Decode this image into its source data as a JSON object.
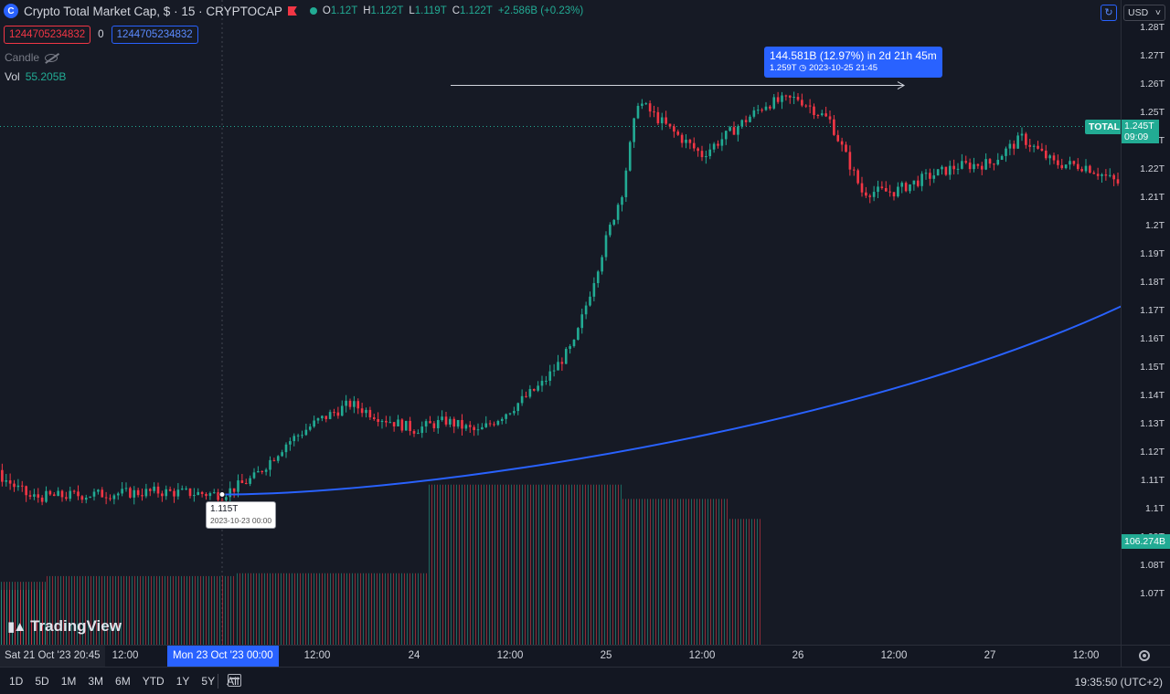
{
  "header": {
    "symbol_icon": "crypto-cap-icon",
    "title": "Crypto Total Market Cap, $ · 15 · CRYPTOCAP",
    "ohlc": {
      "o_label": "O",
      "o": "1.12T",
      "h_label": "H",
      "h": "1.122T",
      "l_label": "L",
      "l": "1.119T",
      "c_label": "C",
      "c": "1.122T",
      "change": "+2.586B (+0.23%)"
    },
    "input_a": "1244705234832",
    "input_sep": "0",
    "input_b": "1244705234832",
    "candle_label": "Candle",
    "vol_label": "Vol",
    "vol_value": "55.205B"
  },
  "measure": {
    "main": "144.581B (12.97%) in 2d 21h 45m",
    "sub": "1.259T ◷ 2023-10-25  21:45"
  },
  "start_point": {
    "price": "1.115T",
    "date": "2023-10-23 00:00"
  },
  "price_scale": {
    "currency": "USD",
    "ticks": [
      "1.28T",
      "1.27T",
      "1.26T",
      "1.25T",
      "1.23T",
      "1.22T",
      "1.21T",
      "1.2T",
      "1.19T",
      "1.18T",
      "1.17T",
      "1.16T",
      "1.15T",
      "1.14T",
      "1.13T",
      "1.12T",
      "1.11T",
      "1.1T",
      "1.09T",
      "1.08T",
      "1.07T"
    ],
    "total_label": "TOTAL",
    "last_price": "1.245T",
    "countdown": "09:09",
    "volume_tag": "106.274B"
  },
  "time_axis": {
    "start_label": "Sat 21 Oct '23   20:45",
    "highlight_label": "Mon 23 Oct '23   00:00",
    "labels": [
      "12:00",
      "12:00",
      "24",
      "12:00",
      "25",
      "12:00",
      "26",
      "12:00",
      "27",
      "12:00"
    ]
  },
  "toolbar": {
    "timeframes": [
      "1D",
      "5D",
      "1M",
      "3M",
      "6M",
      "YTD",
      "1Y",
      "5Y",
      "All"
    ],
    "clock": "19:35:50 (UTC+2)"
  },
  "brand": "TradingView",
  "colors": {
    "up": "#22ab94",
    "down": "#f23645",
    "accent": "#2962ff",
    "background": "#161a25"
  },
  "chart_data": {
    "type": "candlestick",
    "interval": "15",
    "title": "Crypto Total Market Cap, $ · 15 · CRYPTOCAP",
    "ylim": [
      1.065,
      1.285
    ],
    "y_unit": "T",
    "close_path": [
      [
        "2023-10-21 20:45",
        1.119
      ],
      [
        "2023-10-22 02:00",
        1.117
      ],
      [
        "2023-10-22 06:00",
        1.116
      ],
      [
        "2023-10-22 10:00",
        1.122
      ],
      [
        "2023-10-22 12:00",
        1.114
      ],
      [
        "2023-10-22 16:00",
        1.115
      ],
      [
        "2023-10-22 20:00",
        1.116
      ],
      [
        "2023-10-23 00:00",
        1.115
      ],
      [
        "2023-10-23 02:00",
        1.121
      ],
      [
        "2023-10-23 04:00",
        1.133
      ],
      [
        "2023-10-23 06:00",
        1.141
      ],
      [
        "2023-10-23 08:00",
        1.147
      ],
      [
        "2023-10-23 10:00",
        1.142
      ],
      [
        "2023-10-23 12:00",
        1.138
      ],
      [
        "2023-10-23 14:00",
        1.141
      ],
      [
        "2023-10-23 16:00",
        1.137
      ],
      [
        "2023-10-23 18:00",
        1.145
      ],
      [
        "2023-10-23 20:00",
        1.154
      ],
      [
        "2023-10-23 22:00",
        1.168
      ],
      [
        "2023-10-24 00:00",
        1.205
      ],
      [
        "2023-10-24 01:00",
        1.222
      ],
      [
        "2023-10-24 02:00",
        1.254
      ],
      [
        "2023-10-24 04:00",
        1.244
      ],
      [
        "2023-10-24 06:00",
        1.235
      ],
      [
        "2023-10-24 08:00",
        1.244
      ],
      [
        "2023-10-24 10:00",
        1.253
      ],
      [
        "2023-10-24 12:00",
        1.255
      ],
      [
        "2023-10-24 14:00",
        1.247
      ],
      [
        "2023-10-24 16:00",
        1.222
      ],
      [
        "2023-10-24 18:00",
        1.222
      ],
      [
        "2023-10-24 20:00",
        1.227
      ],
      [
        "2023-10-24 22:00",
        1.231
      ],
      [
        "2023-10-25 00:00",
        1.232
      ],
      [
        "2023-10-25 02:00",
        1.241
      ],
      [
        "2023-10-25 04:00",
        1.232
      ],
      [
        "2023-10-25 06:00",
        1.231
      ],
      [
        "2023-10-25 08:00",
        1.225
      ],
      [
        "2023-10-25 10:00",
        1.228
      ],
      [
        "2023-10-25 12:00",
        1.233
      ],
      [
        "2023-10-25 14:00",
        1.237
      ],
      [
        "2023-10-25 16:00",
        1.245
      ],
      [
        "2023-10-25 18:00",
        1.252
      ],
      [
        "2023-10-25 19:30",
        1.245
      ]
    ],
    "volume_profile": [
      {
        "label": "2023-10-21",
        "value": 0.22
      },
      {
        "label": "2023-10-22",
        "value": 0.22
      },
      {
        "label": "2023-10-23 a",
        "value": 0.24
      },
      {
        "label": "2023-10-23 b",
        "value": 0.25
      },
      {
        "label": "2023-10-24",
        "value": 0.56
      },
      {
        "label": "2023-10-25 a",
        "value": 0.51
      },
      {
        "label": "2023-10-25 b",
        "value": 0.44
      }
    ],
    "measure": {
      "from": [
        "2023-10-23 00:00",
        1.115
      ],
      "to": [
        "2023-10-25 21:45",
        1.259
      ],
      "change": "144.581B (12.97%)",
      "duration": "2d 21h 45m"
    }
  }
}
